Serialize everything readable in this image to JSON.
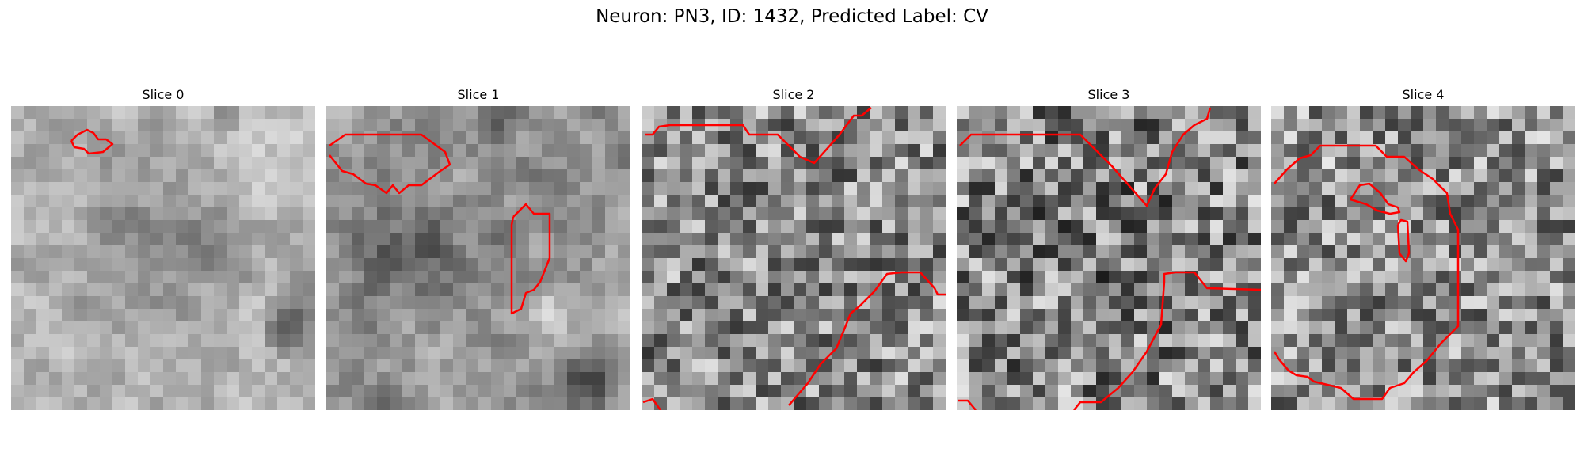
{
  "figure": {
    "title": "Neuron: PN3, ID: 1432, Predicted Label: CV",
    "contour_color": "#ff0000"
  },
  "panels": [
    {
      "title": "Slice 0"
    },
    {
      "title": "Slice 1"
    },
    {
      "title": "Slice 2"
    },
    {
      "title": "Slice 3"
    },
    {
      "title": "Slice 4"
    }
  ]
}
